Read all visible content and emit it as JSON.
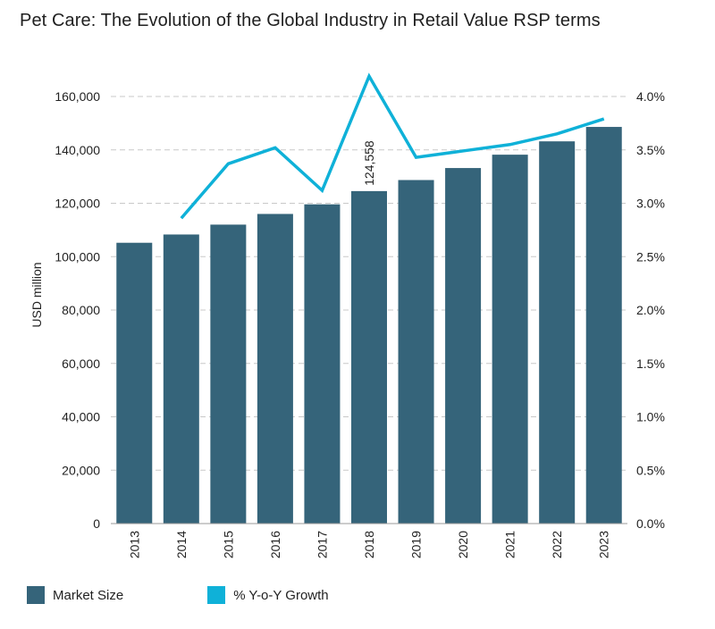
{
  "title": "Pet Care: The Evolution of the Global Industry in Retail Value RSP terms",
  "colors": {
    "bar": "#35647a",
    "line": "#0fb1d8",
    "grid": "#c8c8c8"
  },
  "legend": {
    "bar_label": "Market Size",
    "line_label": "% Y-o-Y Growth"
  },
  "chart_data": {
    "type": "bar",
    "categories": [
      "2013",
      "2014",
      "2015",
      "2016",
      "2017",
      "2018",
      "2019",
      "2020",
      "2021",
      "2022",
      "2023"
    ],
    "series": [
      {
        "name": "Market Size",
        "type": "bar",
        "axis": "left",
        "values": [
          105200,
          108300,
          112000,
          116000,
          119600,
          124558,
          128700,
          133200,
          138200,
          143200,
          148600
        ]
      },
      {
        "name": "% Y-o-Y Growth",
        "type": "line",
        "axis": "right",
        "values": [
          null,
          2.86,
          3.37,
          3.52,
          3.12,
          4.19,
          3.43,
          3.49,
          3.55,
          3.65,
          3.79
        ]
      }
    ],
    "ylabel": "USD million",
    "ylim": [
      0,
      160000
    ],
    "yticks": [
      "0",
      "20,000",
      "40,000",
      "60,000",
      "80,000",
      "100,000",
      "120,000",
      "140,000",
      "160,000"
    ],
    "y2lim": [
      0,
      4.0
    ],
    "y2ticks": [
      "0.0%",
      "0.5%",
      "1.0%",
      "1.5%",
      "2.0%",
      "2.5%",
      "3.0%",
      "3.5%",
      "4.0%"
    ],
    "annotations": [
      {
        "category": "2018",
        "text": "124,558"
      }
    ],
    "grid": true,
    "legend_position": "bottom"
  }
}
